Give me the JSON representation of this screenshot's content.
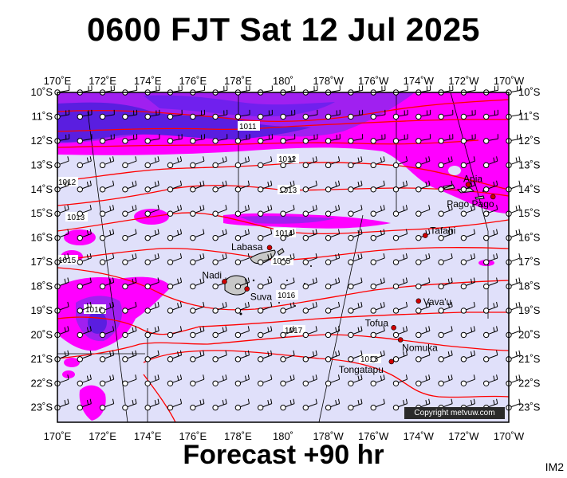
{
  "header": {
    "title": "0600 FJT Sat 12 Jul 2025"
  },
  "footer": {
    "forecast": "Forecast +90 hr",
    "code": "IM2",
    "copyright": "Copyright metvuw.com"
  },
  "map": {
    "longitude_labels": [
      "170˚E",
      "172˚E",
      "174˚E",
      "176˚E",
      "178˚E",
      "180˚",
      "178˚W",
      "176˚W",
      "174˚W",
      "172˚W",
      "170˚W"
    ],
    "latitude_labels": [
      "10˚S",
      "11˚S",
      "12˚S",
      "13˚S",
      "14˚S",
      "15˚S",
      "16˚S",
      "17˚S",
      "18˚S",
      "19˚S",
      "20˚S",
      "21˚S",
      "22˚S",
      "23˚S"
    ],
    "places": [
      {
        "name": "Apia",
        "lon": -171.8,
        "lat": -13.8
      },
      {
        "name": "Pago Pago",
        "lon": -170.7,
        "lat": -14.3
      },
      {
        "name": "Tafahi",
        "lon": -173.7,
        "lat": -15.9
      },
      {
        "name": "Labasa",
        "lon": 179.4,
        "lat": -16.4
      },
      {
        "name": "Nadi",
        "lon": 177.4,
        "lat": -17.8
      },
      {
        "name": "Suva",
        "lon": 178.4,
        "lat": -18.1
      },
      {
        "name": "Vava'u",
        "lon": -174.0,
        "lat": -18.6
      },
      {
        "name": "Tofua",
        "lon": -175.1,
        "lat": -19.7
      },
      {
        "name": "Nomuka",
        "lon": -174.8,
        "lat": -20.2
      },
      {
        "name": "Tongatapu",
        "lon": -175.2,
        "lat": -21.1
      }
    ],
    "isobar_labels": [
      "1011",
      "1012",
      "1012",
      "1013",
      "1013",
      "1014",
      "1015",
      "1015",
      "1016",
      "1016",
      "1017",
      "1018"
    ],
    "colors": {
      "background": "#e0e0fa",
      "rain_light": "#ff00ff",
      "rain_heavy": "#a020f0",
      "rain_very_heavy": "#5a1ee0",
      "isobar": "#ff0000",
      "land": "#c8c8c8",
      "town": "#d00000"
    }
  }
}
